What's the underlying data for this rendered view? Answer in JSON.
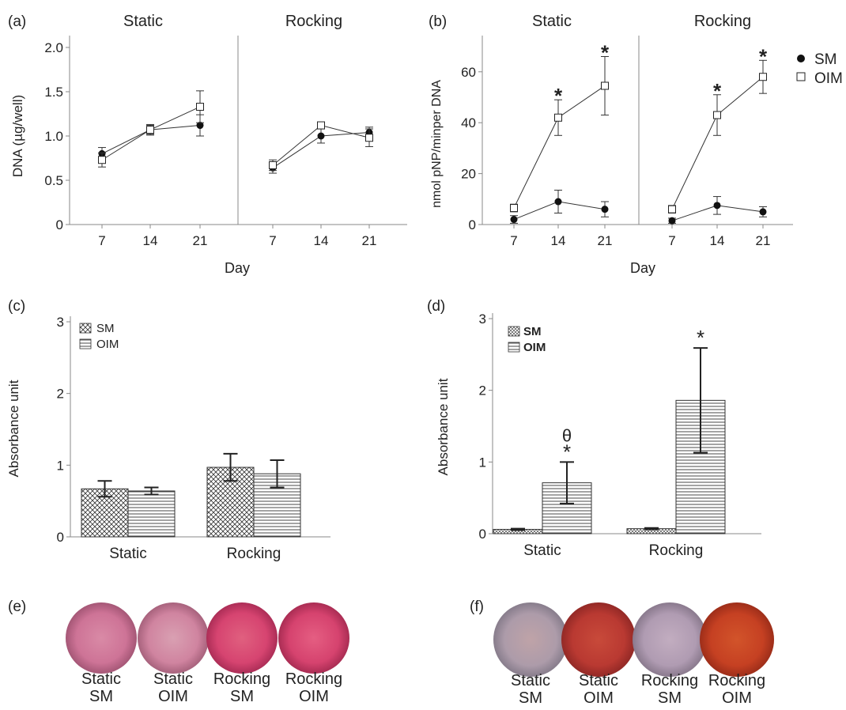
{
  "chart_data": [
    {
      "panel": "(a)",
      "type": "line",
      "ylabel": "DNA (µg/well)",
      "xlabel": "Day",
      "ylim": [
        0,
        2.0
      ],
      "yticks": [
        "0",
        "0.5",
        "1.0",
        "1.5",
        "2.0"
      ],
      "subplots": [
        {
          "title": "Static",
          "x": [
            7,
            14,
            21
          ],
          "series": [
            {
              "name": "SM",
              "values": [
                0.8,
                1.07,
                1.12
              ],
              "err": [
                0.07,
                0.05,
                0.12
              ]
            },
            {
              "name": "OIM",
              "values": [
                0.73,
                1.07,
                1.33
              ],
              "err": [
                0.08,
                0.06,
                0.18
              ]
            }
          ]
        },
        {
          "title": "Rocking",
          "x": [
            7,
            14,
            21
          ],
          "series": [
            {
              "name": "SM",
              "values": [
                0.64,
                1.0,
                1.04
              ],
              "err": [
                0.06,
                0.08,
                0.06
              ]
            },
            {
              "name": "OIM",
              "values": [
                0.67,
                1.12,
                0.98
              ],
              "err": [
                0.06,
                0.02,
                0.1
              ]
            }
          ]
        }
      ]
    },
    {
      "panel": "(b)",
      "type": "line",
      "ylabel": "nmol pNP/minper DNA",
      "xlabel": "Day",
      "ylim": [
        0,
        70
      ],
      "yticks": [
        "0",
        "20",
        "40",
        "60"
      ],
      "legend": [
        "SM",
        "OIM"
      ],
      "legend_position": "top-right",
      "subplots": [
        {
          "title": "Static",
          "x": [
            7,
            14,
            21
          ],
          "series": [
            {
              "name": "SM",
              "values": [
                2,
                9,
                6
              ],
              "err": [
                1.5,
                4.5,
                3.0
              ]
            },
            {
              "name": "OIM",
              "values": [
                6.5,
                42,
                54.5
              ],
              "err": [
                1.5,
                7,
                11.5
              ]
            }
          ],
          "annotations": [
            "",
            "*",
            "*"
          ]
        },
        {
          "title": "Rocking",
          "x": [
            7,
            14,
            21
          ],
          "series": [
            {
              "name": "SM",
              "values": [
                1.5,
                7.5,
                5
              ],
              "err": [
                1.0,
                3.5,
                2.0
              ]
            },
            {
              "name": "OIM",
              "values": [
                6,
                43,
                58
              ],
              "err": [
                1.5,
                8,
                6.5
              ]
            }
          ],
          "annotations": [
            "",
            "*",
            "*"
          ]
        }
      ]
    },
    {
      "panel": "(c)",
      "type": "bar",
      "ylabel": "Absorbance unit",
      "ylim": [
        0,
        3
      ],
      "yticks": [
        "0",
        "1",
        "2",
        "3"
      ],
      "categories": [
        "Static",
        "Rocking"
      ],
      "legend": [
        "SM",
        "OIM"
      ],
      "series": [
        {
          "name": "SM",
          "values": [
            0.67,
            0.97
          ],
          "err": [
            0.11,
            0.19
          ]
        },
        {
          "name": "OIM",
          "values": [
            0.64,
            0.88
          ],
          "err": [
            0.05,
            0.19
          ]
        }
      ]
    },
    {
      "panel": "(d)",
      "type": "bar",
      "ylabel": "Absorbance unit",
      "ylim": [
        0,
        3
      ],
      "yticks": [
        "0",
        "1",
        "2",
        "3"
      ],
      "categories": [
        "Static",
        "Rocking"
      ],
      "legend": [
        "SM",
        "OIM"
      ],
      "series": [
        {
          "name": "SM",
          "values": [
            0.06,
            0.07
          ],
          "err": [
            0.01,
            0.01
          ]
        },
        {
          "name": "OIM",
          "values": [
            0.71,
            1.86
          ],
          "err": [
            0.29,
            0.73
          ]
        }
      ],
      "annotations": [
        "θ *",
        "*"
      ]
    }
  ],
  "stain_panels": [
    {
      "panel": "(e)",
      "wells": [
        {
          "line1": "Static",
          "line2": "SM",
          "color": "#c96a90",
          "center": "#d98aa6"
        },
        {
          "line1": "Static",
          "line2": "OIM",
          "color": "#cc7898",
          "center": "#d9a0b2"
        },
        {
          "line1": "Rocking",
          "line2": "SM",
          "color": "#d2386a",
          "center": "#e0607f"
        },
        {
          "line1": "Rocking",
          "line2": "OIM",
          "color": "#cf3766",
          "center": "#e55e82"
        }
      ]
    },
    {
      "panel": "(f)",
      "wells": [
        {
          "line1": "Static",
          "line2": "SM",
          "color": "#a598aa",
          "center": "#bfa3a8"
        },
        {
          "line1": "Static",
          "line2": "OIM",
          "color": "#b3322e",
          "center": "#c84a3a"
        },
        {
          "line1": "Rocking",
          "line2": "SM",
          "color": "#a894ac",
          "center": "#c2adc0"
        },
        {
          "line1": "Rocking",
          "line2": "OIM",
          "color": "#c0381f",
          "center": "#d2542a"
        }
      ]
    }
  ]
}
